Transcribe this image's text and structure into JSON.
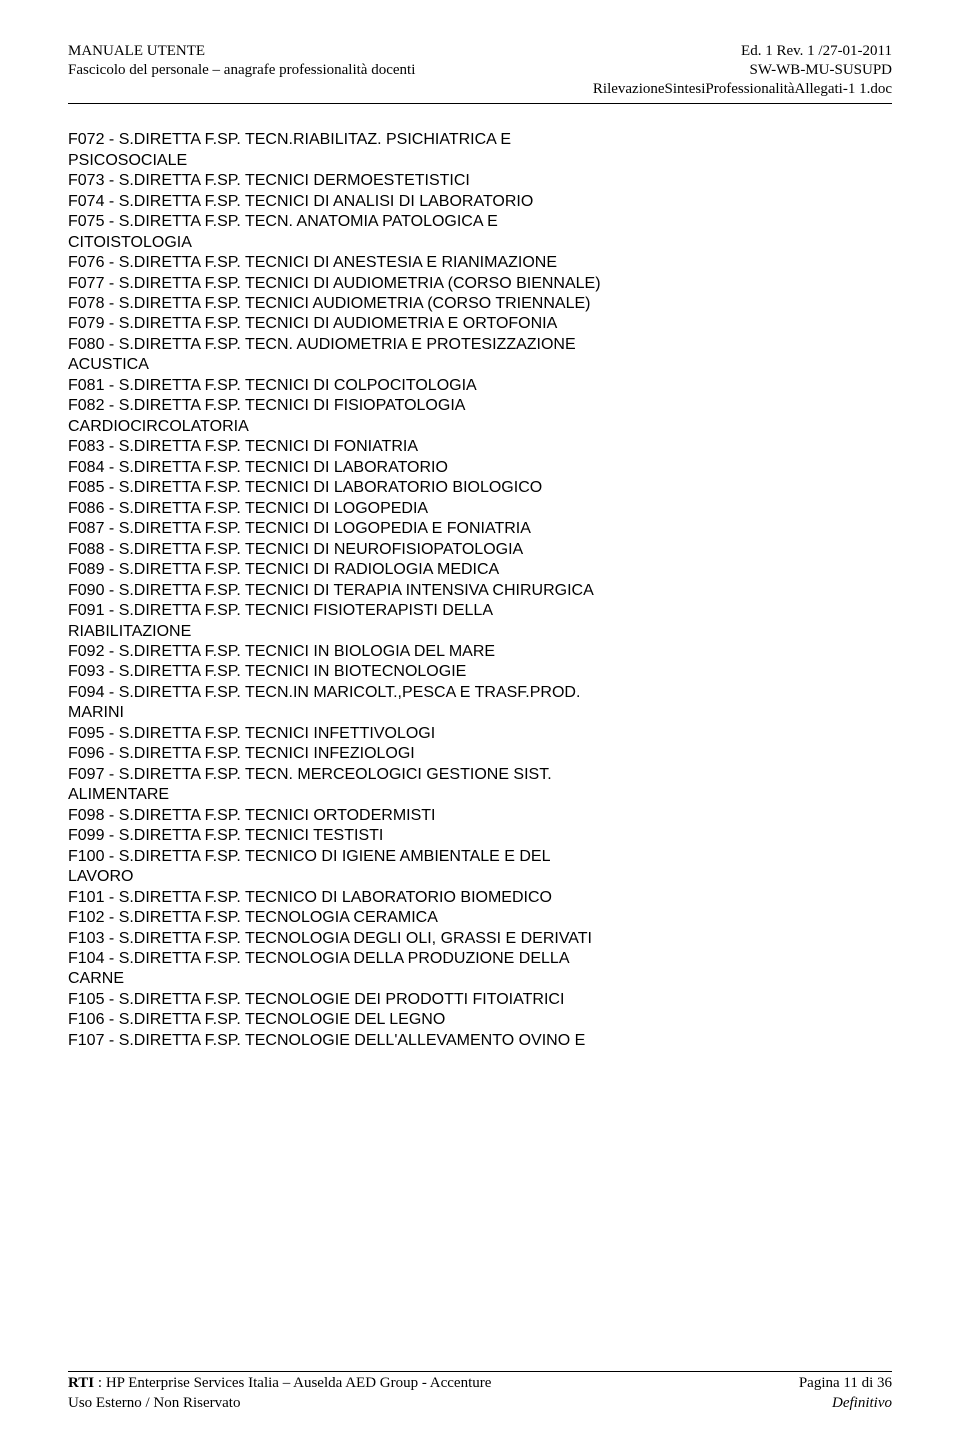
{
  "header": {
    "left_line1": "MANUALE UTENTE",
    "left_line2": "Fascicolo del personale – anagrafe professionalità docenti",
    "right_line1": "Ed. 1 Rev. 1 /27-01-2011",
    "right_line2": "SW-WB-MU-SUSUPD",
    "right_line3": "RilevazioneSintesiProfessionalitàAllegati-1 1.doc"
  },
  "lines": [
    "F072 - S.DIRETTA F.SP. TECN.RIABILITAZ. PSICHIATRICA E",
    "PSICOSOCIALE",
    "F073 - S.DIRETTA F.SP. TECNICI DERMOESTETISTICI",
    "F074 - S.DIRETTA F.SP. TECNICI DI ANALISI DI LABORATORIO",
    "F075 - S.DIRETTA F.SP. TECN. ANATOMIA PATOLOGICA E",
    "CITOISTOLOGIA",
    "F076 - S.DIRETTA F.SP. TECNICI DI ANESTESIA E RIANIMAZIONE",
    "F077 - S.DIRETTA F.SP. TECNICI DI AUDIOMETRIA (CORSO BIENNALE)",
    "F078 - S.DIRETTA F.SP. TECNICI AUDIOMETRIA (CORSO TRIENNALE)",
    "F079 - S.DIRETTA F.SP. TECNICI DI AUDIOMETRIA E ORTOFONIA",
    "F080 - S.DIRETTA F.SP. TECN. AUDIOMETRIA E PROTESIZZAZIONE",
    "ACUSTICA",
    "F081 - S.DIRETTA F.SP. TECNICI DI COLPOCITOLOGIA",
    "F082 - S.DIRETTA F.SP. TECNICI DI FISIOPATOLOGIA",
    "CARDIOCIRCOLATORIA",
    "F083 - S.DIRETTA F.SP. TECNICI DI FONIATRIA",
    "F084 - S.DIRETTA F.SP. TECNICI DI LABORATORIO",
    "F085 - S.DIRETTA F.SP. TECNICI DI LABORATORIO BIOLOGICO",
    "F086 - S.DIRETTA F.SP. TECNICI DI LOGOPEDIA",
    "F087 - S.DIRETTA F.SP. TECNICI DI LOGOPEDIA E FONIATRIA",
    "F088 - S.DIRETTA F.SP. TECNICI DI NEUROFISIOPATOLOGIA",
    "F089 - S.DIRETTA F.SP. TECNICI DI RADIOLOGIA MEDICA",
    "F090 - S.DIRETTA F.SP. TECNICI DI TERAPIA INTENSIVA CHIRURGICA",
    "F091 - S.DIRETTA F.SP. TECNICI FISIOTERAPISTI DELLA",
    "RIABILITAZIONE",
    "F092 - S.DIRETTA F.SP. TECNICI IN BIOLOGIA DEL MARE",
    "F093 - S.DIRETTA F.SP. TECNICI IN BIOTECNOLOGIE",
    "F094 - S.DIRETTA F.SP. TECN.IN MARICOLT.,PESCA E TRASF.PROD.",
    "MARINI",
    "F095 - S.DIRETTA F.SP. TECNICI INFETTIVOLOGI",
    "F096 - S.DIRETTA F.SP. TECNICI INFEZIOLOGI",
    "F097 - S.DIRETTA F.SP. TECN. MERCEOLOGICI GESTIONE SIST.",
    "ALIMENTARE",
    "F098 - S.DIRETTA F.SP. TECNICI ORTODERMISTI",
    "F099 - S.DIRETTA F.SP. TECNICI TESTISTI",
    "F100 - S.DIRETTA F.SP. TECNICO DI IGIENE AMBIENTALE E DEL",
    "LAVORO",
    "F101 - S.DIRETTA F.SP. TECNICO DI LABORATORIO BIOMEDICO",
    "F102 - S.DIRETTA F.SP. TECNOLOGIA CERAMICA",
    "F103 - S.DIRETTA F.SP. TECNOLOGIA DEGLI OLI, GRASSI E DERIVATI",
    "F104 - S.DIRETTA F.SP. TECNOLOGIA DELLA PRODUZIONE DELLA",
    "CARNE",
    "F105 - S.DIRETTA F.SP. TECNOLOGIE DEI PRODOTTI FITOIATRICI",
    "F106 - S.DIRETTA F.SP. TECNOLOGIE DEL LEGNO",
    "F107 - S.DIRETTA F.SP. TECNOLOGIE DELL'ALLEVAMENTO OVINO E"
  ],
  "footer": {
    "left_line1_prefix": "RTI",
    "left_line1_rest": " : HP Enterprise Services Italia – Auselda AED Group - Accenture",
    "right_line1": "Pagina 11  di 36",
    "left_line2": "Uso Esterno / Non Riservato",
    "right_line2": "Definitivo"
  }
}
